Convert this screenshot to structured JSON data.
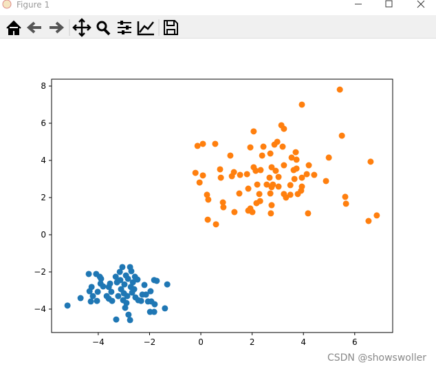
{
  "window": {
    "title": "Figure 1"
  },
  "watermark": "CSDN @showswoller",
  "chart_data": {
    "type": "scatter",
    "xlim": [
      -5.82,
      7.48
    ],
    "ylim": [
      -5.26,
      8.37
    ],
    "xticks": [
      {
        "value": -4,
        "label": "−4"
      },
      {
        "value": -2,
        "label": "−2"
      },
      0,
      2,
      4,
      6
    ],
    "yticks": [
      {
        "value": -4,
        "label": "−4"
      },
      {
        "value": -2,
        "label": "−2"
      },
      0,
      2,
      4,
      6,
      8
    ],
    "series": [
      {
        "color": "#1f77b4",
        "x": [
          -5.2,
          -4.69,
          -4.37,
          -4.34,
          -4.29,
          -4.26,
          -4.08,
          -4.02,
          -4.05,
          -3.94,
          -3.91,
          -3.89,
          -3.67,
          -3.59,
          -3.59,
          -3.54,
          -3.49,
          -3.46,
          -3.3,
          -3.32,
          -3.27,
          -3.16,
          -3.14,
          -3.11,
          -3.06,
          -3.03,
          -3.0,
          -2.98,
          -2.95,
          -2.92,
          -2.9,
          -2.87,
          -2.84,
          -2.82,
          -2.76,
          -2.76,
          -2.73,
          -2.71,
          -2.68,
          -2.65,
          -2.6,
          -2.55,
          -2.47,
          -2.44,
          -2.33,
          -2.28,
          -2.2,
          -2.14,
          -2.06,
          -1.98,
          -1.96,
          -1.93,
          -1.82,
          -1.82,
          -1.72,
          -1.8,
          -1.4,
          -1.31,
          -3.81,
          -4.21,
          -3.22,
          -2.57
        ],
        "values": [
          -3.81,
          -3.41,
          -2.11,
          -3.04,
          -3.59,
          -2.81,
          -2.11,
          -3.07,
          -3.56,
          -2.26,
          -2.63,
          -2.37,
          -3.3,
          -2.81,
          -3.44,
          -2.63,
          -3.07,
          -3.56,
          -4.56,
          -2.26,
          -2.56,
          -2.0,
          -2.44,
          -2.93,
          -1.74,
          -3.52,
          -3.15,
          -2.67,
          -3.93,
          -2.19,
          -3.67,
          -3.3,
          -2.37,
          -4.3,
          -1.74,
          -4.59,
          -2.81,
          -1.96,
          -3.11,
          -2.56,
          -2.93,
          -3.37,
          -2.41,
          -3.52,
          -3.56,
          -3.22,
          -2.7,
          -3.22,
          -3.59,
          -4.15,
          -3.04,
          -3.59,
          -4.15,
          -2.44,
          -2.48,
          -3.74,
          -3.96,
          -2.67,
          -2.78,
          -3.3,
          -3.3,
          -2.26
        ]
      },
      {
        "color": "#ff7f0e",
        "x": [
          5.42,
          3.94,
          2.06,
          3.24,
          3.14,
          5.5,
          1.93,
          2.44,
          -0.13,
          0.08,
          0.56,
          2.87,
          2.98,
          3.19,
          1.15,
          2.39,
          2.71,
          3.54,
          3.7,
          4.99,
          6.62,
          3.73,
          3.24,
          4.21,
          2.06,
          2.76,
          -0.21,
          0.08,
          0.75,
          1.29,
          1.21,
          1.53,
          1.8,
          2.14,
          2.33,
          2.92,
          3.62,
          3.73,
          0.78,
          2.68,
          3.03,
          4.13,
          4.42,
          3.94,
          3.65,
          -0.05,
          2.2,
          2.57,
          2.81,
          3.03,
          2.76,
          3.49,
          3.94,
          4.88,
          1.85,
          1.5,
          2.71,
          2.28,
          3.24,
          3.49,
          3.78,
          3.91,
          0.24,
          0.29,
          3.32,
          5.63,
          5.66,
          2.31,
          2.17,
          0.86,
          0.88,
          2.76,
          1.93,
          1.85,
          1.31,
          2.01,
          2.73,
          4.18,
          0.27,
          0.59,
          6.54,
          6.86
        ],
        "values": [
          7.81,
          7.0,
          5.56,
          5.7,
          5.89,
          5.33,
          4.7,
          4.74,
          4.78,
          4.89,
          4.89,
          4.85,
          5.0,
          4.74,
          4.26,
          4.26,
          4.37,
          4.15,
          4.44,
          4.15,
          3.93,
          4.04,
          3.74,
          3.74,
          3.63,
          3.63,
          3.33,
          3.19,
          3.52,
          3.37,
          3.15,
          3.22,
          3.26,
          3.44,
          3.48,
          3.44,
          3.48,
          3.56,
          3.07,
          3.07,
          3.11,
          3.26,
          3.22,
          3.07,
          3.0,
          2.81,
          2.7,
          2.7,
          2.7,
          2.59,
          2.56,
          2.67,
          2.59,
          2.89,
          2.48,
          2.22,
          2.22,
          2.19,
          2.19,
          2.15,
          2.19,
          2.37,
          2.15,
          1.89,
          2.0,
          2.04,
          1.67,
          1.81,
          1.7,
          1.74,
          1.48,
          1.59,
          1.41,
          1.3,
          1.22,
          1.22,
          1.15,
          1.15,
          0.81,
          0.56,
          0.74,
          1.04
        ]
      }
    ]
  }
}
